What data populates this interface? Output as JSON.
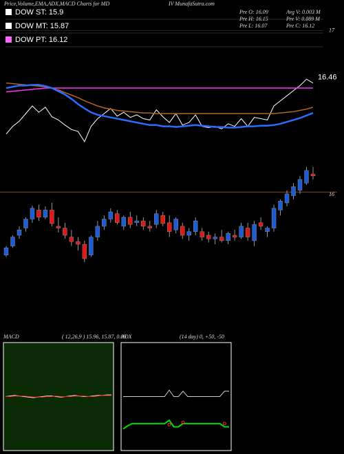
{
  "chart_data": [
    {
      "type": "candlestick",
      "title": "Price,Volume,EMA,ADX,MACD Charts for MD",
      "source": "IV MunafaSutra.com",
      "legend": [
        {
          "label": "DOW ST: 15.9",
          "color": "#ffffff"
        },
        {
          "label": "DOW MT: 15.87",
          "color": "#ffffff"
        },
        {
          "label": "DOW PT: 16.12",
          "color": "#ff66ff"
        }
      ],
      "info": [
        "Pre  O: 16.09",
        "Avg  V: 0.003 M",
        "Pre  H: 16.15",
        "Pre  V: 0.089 M",
        "Pre  L: 16.07",
        "Pre  C: 16.12"
      ],
      "annotations": [
        "16.46"
      ],
      "up_color": "#1e5bd6",
      "down_color": "#e01818",
      "candles": [
        [
          15.3,
          15.4,
          15.28,
          15.38
        ],
        [
          15.4,
          15.52,
          15.38,
          15.5
        ],
        [
          15.52,
          15.62,
          15.48,
          15.58
        ],
        [
          15.6,
          15.72,
          15.56,
          15.7
        ],
        [
          15.7,
          15.85,
          15.66,
          15.82
        ],
        [
          15.8,
          15.86,
          15.68,
          15.72
        ],
        [
          15.72,
          15.84,
          15.7,
          15.8
        ],
        [
          15.8,
          15.88,
          15.62,
          15.65
        ],
        [
          15.62,
          15.72,
          15.55,
          15.6
        ],
        [
          15.6,
          15.66,
          15.48,
          15.52
        ],
        [
          15.5,
          15.58,
          15.4,
          15.45
        ],
        [
          15.45,
          15.5,
          15.35,
          15.42
        ],
        [
          15.42,
          15.46,
          15.22,
          15.26
        ],
        [
          15.3,
          15.52,
          15.28,
          15.5
        ],
        [
          15.5,
          15.68,
          15.46,
          15.62
        ],
        [
          15.62,
          15.74,
          15.58,
          15.7
        ],
        [
          15.7,
          15.82,
          15.66,
          15.78
        ],
        [
          15.76,
          15.8,
          15.64,
          15.66
        ],
        [
          15.62,
          15.74,
          15.58,
          15.72
        ],
        [
          15.72,
          15.78,
          15.6,
          15.64
        ],
        [
          15.66,
          15.74,
          15.62,
          15.68
        ],
        [
          15.68,
          15.72,
          15.58,
          15.62
        ],
        [
          15.62,
          15.68,
          15.56,
          15.6
        ],
        [
          15.64,
          15.8,
          15.6,
          15.76
        ],
        [
          15.74,
          15.78,
          15.62,
          15.65
        ],
        [
          15.66,
          15.74,
          15.5,
          15.56
        ],
        [
          15.58,
          15.72,
          15.54,
          15.7
        ],
        [
          15.62,
          15.66,
          15.48,
          15.52
        ],
        [
          15.52,
          15.6,
          15.46,
          15.56
        ],
        [
          15.56,
          15.72,
          15.52,
          15.68
        ],
        [
          15.56,
          15.6,
          15.46,
          15.5
        ],
        [
          15.52,
          15.56,
          15.44,
          15.48
        ],
        [
          15.48,
          15.54,
          15.42,
          15.5
        ],
        [
          15.5,
          15.58,
          15.44,
          15.46
        ],
        [
          15.46,
          15.56,
          15.42,
          15.54
        ],
        [
          15.52,
          15.58,
          15.46,
          15.5
        ],
        [
          15.5,
          15.66,
          15.48,
          15.62
        ],
        [
          15.6,
          15.66,
          15.46,
          15.5
        ],
        [
          15.46,
          15.68,
          15.4,
          15.64
        ],
        [
          15.66,
          15.72,
          15.58,
          15.62
        ],
        [
          15.56,
          15.62,
          15.5,
          15.6
        ],
        [
          15.6,
          15.86,
          15.56,
          15.82
        ],
        [
          15.8,
          15.92,
          15.74,
          15.9
        ],
        [
          15.88,
          16.02,
          15.84,
          15.98
        ],
        [
          15.96,
          16.1,
          15.92,
          16.06
        ],
        [
          16.02,
          16.18,
          15.98,
          16.14
        ],
        [
          16.1,
          16.28,
          16.08,
          16.24
        ],
        [
          16.2,
          16.28,
          16.14,
          16.18
        ]
      ],
      "ylim": [
        15.0,
        16.3
      ],
      "yticks": [
        16
      ],
      "y2lim": [
        15.0,
        17.05
      ],
      "y2ticks": [
        17
      ],
      "close_color": "#ffffff",
      "series": [
        {
          "color": "#ff33ff",
          "axis": "y2",
          "values": [
            16.04,
            16.05,
            16.06,
            16.07,
            16.08,
            16.09,
            16.1,
            16.1,
            16.1,
            16.1,
            16.1,
            16.1,
            16.1,
            16.1,
            16.1,
            16.1,
            16.1,
            16.1,
            16.1,
            16.1,
            16.1,
            16.1,
            16.1,
            16.1,
            16.1,
            16.1,
            16.1,
            16.1,
            16.1,
            16.1,
            16.1,
            16.1,
            16.1,
            16.1,
            16.1,
            16.1,
            16.1,
            16.1,
            16.1,
            16.1,
            16.1,
            16.1,
            16.1,
            16.1,
            16.1,
            16.1,
            16.1,
            16.1
          ]
        },
        {
          "color": "#b5651d",
          "axis": "y2",
          "values": [
            16.18,
            16.17,
            16.16,
            16.15,
            16.14,
            16.13,
            16.12,
            16.1,
            16.07,
            16.03,
            15.99,
            15.95,
            15.9,
            15.86,
            15.82,
            15.79,
            15.77,
            15.75,
            15.74,
            15.73,
            15.72,
            15.71,
            15.71,
            15.7,
            15.7,
            15.7,
            15.7,
            15.7,
            15.7,
            15.7,
            15.7,
            15.7,
            15.7,
            15.7,
            15.7,
            15.7,
            15.7,
            15.7,
            15.7,
            15.7,
            15.7,
            15.7,
            15.71,
            15.72,
            15.73,
            15.75,
            15.77,
            15.8
          ]
        },
        {
          "color": "#2a6cff",
          "axis": "y2",
          "values": [
            16.1,
            16.12,
            16.14,
            16.14,
            16.15,
            16.15,
            16.13,
            16.1,
            16.05,
            16.0,
            15.93,
            15.85,
            15.78,
            15.72,
            15.68,
            15.66,
            15.64,
            15.62,
            15.6,
            15.58,
            15.56,
            15.54,
            15.52,
            15.52,
            15.5,
            15.5,
            15.49,
            15.5,
            15.51,
            15.52,
            15.51,
            15.5,
            15.49,
            15.49,
            15.48,
            15.48,
            15.49,
            15.5,
            15.5,
            15.51,
            15.51,
            15.52,
            15.54,
            15.57,
            15.6,
            15.63,
            15.67,
            15.71
          ]
        }
      ]
    },
    {
      "type": "line",
      "title": "MACD",
      "subtitle": "( 12,26,9 ) 15.96, 15.87, 0.09",
      "background": "#0b2a06",
      "ylim": [
        -1,
        1
      ],
      "series": [
        {
          "color": "#ffffff",
          "values": [
            0.0,
            0.01,
            0.02,
            0.01,
            0.0,
            -0.01,
            -0.02,
            -0.01,
            0.0,
            0.01,
            0.01,
            0.0,
            -0.01,
            0.0,
            0.01,
            0.02,
            0.01,
            0.0,
            0.0,
            0.01,
            0.02,
            0.02,
            0.03,
            0.03
          ]
        },
        {
          "color": "#ff2020",
          "values": [
            0.0,
            0.0,
            0.01,
            0.01,
            0.01,
            0.0,
            -0.01,
            -0.01,
            -0.01,
            0.0,
            0.0,
            0.01,
            0.0,
            0.0,
            0.0,
            0.01,
            0.01,
            0.01,
            0.0,
            0.0,
            0.01,
            0.02,
            0.02,
            0.02
          ]
        }
      ]
    },
    {
      "type": "line",
      "title": "ADX",
      "subtitle": "(14  day) 0, +50, -50",
      "background": "#000000",
      "ylim": [
        0,
        100
      ],
      "series": [
        {
          "color": "#cccccc",
          "values": [
            50,
            50,
            50,
            50,
            50,
            50,
            50,
            50,
            50,
            50,
            56,
            50,
            50,
            55,
            50,
            50,
            50,
            50,
            50,
            50,
            50,
            50,
            55,
            55
          ]
        },
        {
          "color": "#00e000",
          "values": [
            20,
            23,
            25,
            25,
            25,
            25,
            25,
            25,
            25,
            25,
            28,
            22,
            22,
            25,
            25,
            25,
            25,
            25,
            25,
            25,
            25,
            25,
            22,
            22
          ]
        },
        {
          "color": "#ff3030",
          "values": [
            null,
            null,
            null,
            null,
            null,
            null,
            null,
            null,
            null,
            null,
            24,
            null,
            null,
            26,
            null,
            null,
            null,
            null,
            null,
            null,
            null,
            null,
            25,
            null
          ]
        }
      ]
    }
  ]
}
